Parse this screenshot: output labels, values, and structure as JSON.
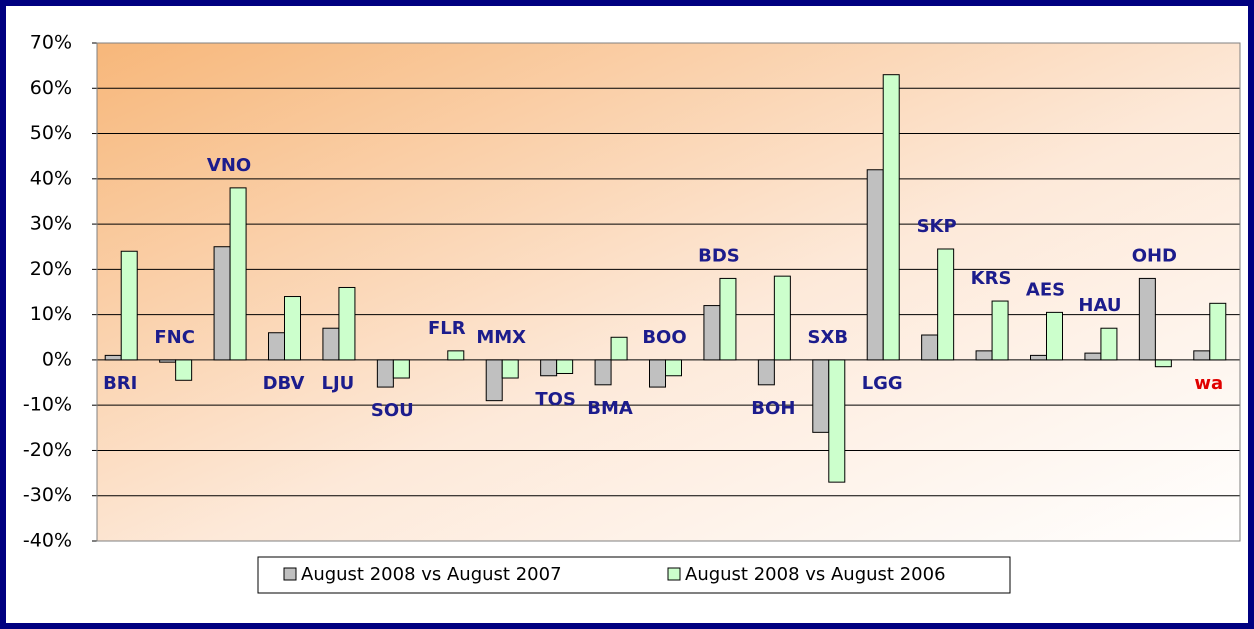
{
  "chart_data": {
    "type": "bar",
    "categories": [
      "BRI",
      "FNC",
      "VNO",
      "DBV",
      "LJU",
      "SOU",
      "FLR",
      "MMX",
      "TOS",
      "BMA",
      "BOO",
      "BDS",
      "BOH",
      "SXB",
      "LGG",
      "SKP",
      "KRS",
      "AES",
      "HAU",
      "OHD",
      "wa"
    ],
    "label_colors": [
      "#1c1c8c",
      "#1c1c8c",
      "#1c1c8c",
      "#1c1c8c",
      "#1c1c8c",
      "#1c1c8c",
      "#1c1c8c",
      "#1c1c8c",
      "#1c1c8c",
      "#1c1c8c",
      "#1c1c8c",
      "#1c1c8c",
      "#1c1c8c",
      "#1c1c8c",
      "#1c1c8c",
      "#1c1c8c",
      "#1c1c8c",
      "#1c1c8c",
      "#1c1c8c",
      "#1c1c8c",
      "#e00000"
    ],
    "series": [
      {
        "name": "August 2008 vs August 2007",
        "color": "#c0c0c0",
        "values": [
          1,
          -0.5,
          25,
          6,
          7,
          -6,
          0,
          -9,
          -3.5,
          -5.5,
          -6,
          12,
          -5.5,
          -16,
          42,
          5.5,
          2,
          1,
          1.5,
          18,
          2
        ]
      },
      {
        "name": "August 2008 vs August 2006",
        "color": "#ccffcc",
        "values": [
          24,
          -4.5,
          38,
          14,
          16,
          -4,
          2,
          -4,
          -3,
          5,
          -3.5,
          18,
          18.5,
          -27,
          63,
          24.5,
          13,
          10.5,
          7,
          -1.5,
          12.5
        ]
      }
    ],
    "ylim": [
      -40,
      70
    ],
    "yticks": [
      {
        "value": -40,
        "label": "-40%"
      },
      {
        "value": -30,
        "label": "-30%"
      },
      {
        "value": -20,
        "label": "-20%"
      },
      {
        "value": -10,
        "label": "-10%"
      },
      {
        "value": 0,
        "label": "0%"
      },
      {
        "value": 10,
        "label": "10%"
      },
      {
        "value": 20,
        "label": "20%"
      },
      {
        "value": 30,
        "label": "30%"
      },
      {
        "value": 40,
        "label": "40%"
      },
      {
        "value": 50,
        "label": "50%"
      },
      {
        "value": 60,
        "label": "60%"
      },
      {
        "value": 70,
        "label": "70%"
      }
    ],
    "grid": true,
    "legend": "bottom"
  }
}
